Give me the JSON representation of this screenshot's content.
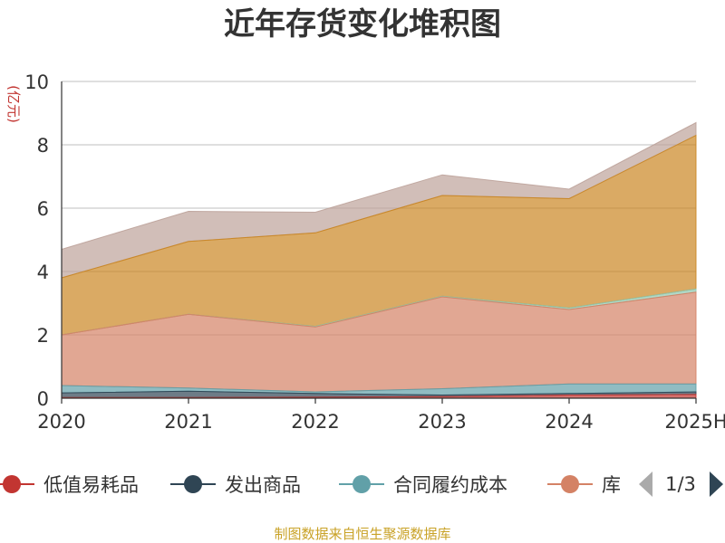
{
  "chart_data": {
    "type": "area",
    "stacked": true,
    "title": "近年存货变化堆积图",
    "ylabel": "(亿元)",
    "xlabel": "",
    "categories": [
      "2020",
      "2021",
      "2022",
      "2023",
      "2024",
      "2025H"
    ],
    "ylim": [
      0,
      10
    ],
    "yticks": [
      "0",
      "2",
      "4",
      "6",
      "8",
      "10"
    ],
    "grid": true,
    "series": [
      {
        "name": "低值易耗品",
        "color": "#c23531",
        "values": [
          0.02,
          0.02,
          0.03,
          0.05,
          0.1,
          0.12
        ]
      },
      {
        "name": "发出商品",
        "color": "#2f4554",
        "values": [
          0.15,
          0.2,
          0.12,
          0.05,
          0.05,
          0.08
        ]
      },
      {
        "name": "合同履约成本",
        "color": "#61a0a8",
        "values": [
          0.23,
          0.1,
          0.05,
          0.2,
          0.3,
          0.25
        ]
      },
      {
        "name": "库存商品",
        "color": "#d48265",
        "values": [
          1.6,
          2.33,
          2.05,
          2.9,
          2.35,
          2.9
        ]
      },
      {
        "name": "",
        "color": "#91c7ae",
        "values": [
          0.0,
          0.0,
          0.02,
          0.02,
          0.05,
          0.1
        ]
      },
      {
        "name": "",
        "color": "#ca8622",
        "values": [
          1.8,
          2.3,
          2.95,
          3.18,
          3.45,
          4.85
        ]
      },
      {
        "name": "",
        "color": "#bda29a",
        "values": [
          0.9,
          0.95,
          0.65,
          0.65,
          0.3,
          0.4
        ]
      }
    ]
  },
  "legend": {
    "items": [
      {
        "label": "低值易耗品",
        "color": "#c23531"
      },
      {
        "label": "发出商品",
        "color": "#2f4554"
      },
      {
        "label": "合同履约成本",
        "color": "#61a0a8"
      },
      {
        "label": "库",
        "color": "#d48265"
      }
    ],
    "page": "1/3",
    "prev_color": "#aaaaaa",
    "next_color": "#2f4554"
  },
  "footer": "制图数据来自恒生聚源数据库"
}
